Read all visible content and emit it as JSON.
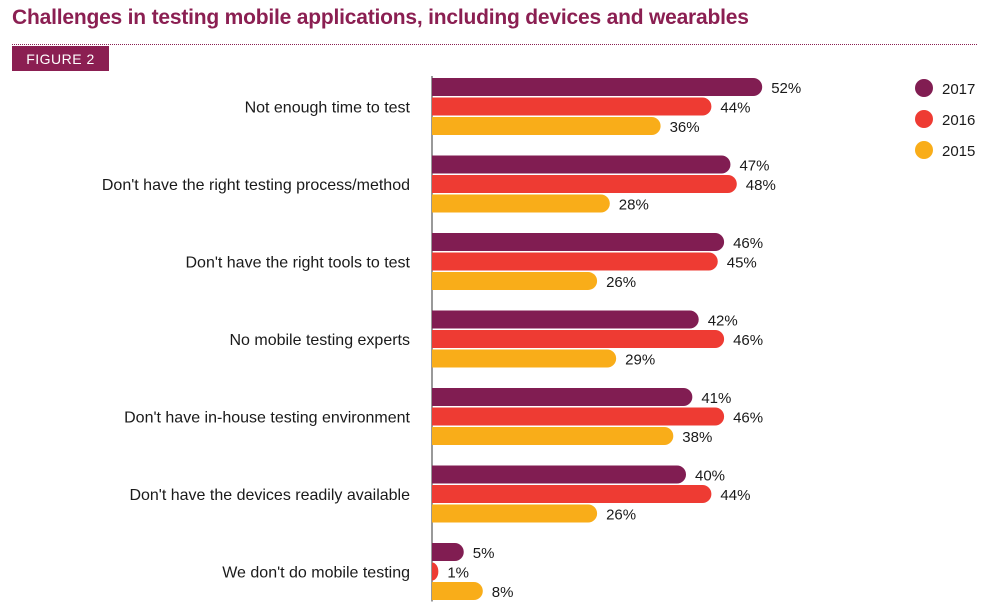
{
  "header": {
    "title": "Challenges in testing mobile applications, including devices and wearables",
    "figure_label": "FIGURE 2"
  },
  "colors": {
    "2017": "#811d52",
    "2016": "#ee3b33",
    "2015": "#f9ad19",
    "title": "#8b1f52"
  },
  "chart_data": {
    "type": "bar",
    "orientation": "horizontal",
    "title": "Challenges in testing mobile applications, including devices and wearables",
    "categories": [
      "Not enough time to test",
      "Don't have the right testing process/method",
      "Don't have the right tools to test",
      "No mobile testing experts",
      "Don't have in-house testing environment",
      "Don't have the devices readily available",
      "We don't do mobile testing"
    ],
    "series": [
      {
        "name": "2017",
        "values": [
          52,
          47,
          46,
          42,
          41,
          40,
          5
        ]
      },
      {
        "name": "2016",
        "values": [
          44,
          48,
          45,
          46,
          46,
          44,
          1
        ]
      },
      {
        "name": "2015",
        "values": [
          36,
          28,
          26,
          29,
          38,
          26,
          8
        ]
      }
    ],
    "value_suffix": "%",
    "xlim": [
      0,
      100
    ],
    "grid": false,
    "legend_position": "top-right"
  }
}
